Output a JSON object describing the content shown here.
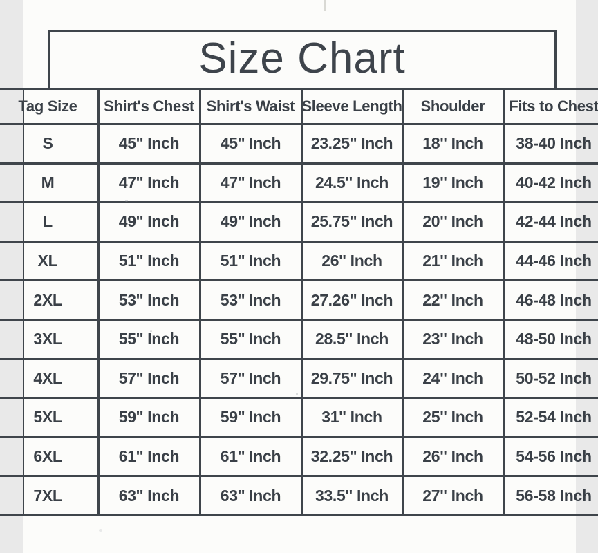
{
  "title": "Size Chart",
  "table": {
    "columns": [
      "Tag Size",
      "Shirt's Chest",
      "Shirt's Waist",
      "Sleeve Length",
      "Shoulder",
      "Fits to Chest"
    ],
    "rows": [
      {
        "tag": "S",
        "chest": "45'' Inch",
        "waist": "45'' Inch",
        "sleeve": "23.25'' Inch",
        "shoulder": "18'' Inch",
        "fits": "38-40 Inch"
      },
      {
        "tag": "M",
        "chest": "47'' Inch",
        "waist": "47'' Inch",
        "sleeve": "24.5'' Inch",
        "shoulder": "19'' Inch",
        "fits": "40-42 Inch"
      },
      {
        "tag": "L",
        "chest": "49'' Inch",
        "waist": "49'' Inch",
        "sleeve": "25.75'' Inch",
        "shoulder": "20'' Inch",
        "fits": "42-44 Inch"
      },
      {
        "tag": "XL",
        "chest": "51'' Inch",
        "waist": "51'' Inch",
        "sleeve": "26'' Inch",
        "shoulder": "21'' Inch",
        "fits": "44-46 Inch"
      },
      {
        "tag": "2XL",
        "chest": "53'' Inch",
        "waist": "53'' Inch",
        "sleeve": "27.26'' Inch",
        "shoulder": "22'' Inch",
        "fits": "46-48 Inch"
      },
      {
        "tag": "3XL",
        "chest": "55'' Inch",
        "waist": "55'' Inch",
        "sleeve": "28.5'' Inch",
        "shoulder": "23'' Inch",
        "fits": "48-50 Inch"
      },
      {
        "tag": "4XL",
        "chest": "57'' Inch",
        "waist": "57'' Inch",
        "sleeve": "29.75'' Inch",
        "shoulder": "24'' Inch",
        "fits": "50-52 Inch"
      },
      {
        "tag": "5XL",
        "chest": "59'' Inch",
        "waist": "59'' Inch",
        "sleeve": "31'' Inch",
        "shoulder": "25'' Inch",
        "fits": "52-54 Inch"
      },
      {
        "tag": "6XL",
        "chest": "61'' Inch",
        "waist": "61'' Inch",
        "sleeve": "32.25'' Inch",
        "shoulder": "26'' Inch",
        "fits": "54-56 Inch"
      },
      {
        "tag": "7XL",
        "chest": "63'' Inch",
        "waist": "63'' Inch",
        "sleeve": "33.5'' Inch",
        "shoulder": "27'' Inch",
        "fits": "56-58 Inch"
      }
    ]
  },
  "colors": {
    "ink": "#3a4047",
    "line": "#3f454b",
    "paper": "#fcfcfa"
  }
}
